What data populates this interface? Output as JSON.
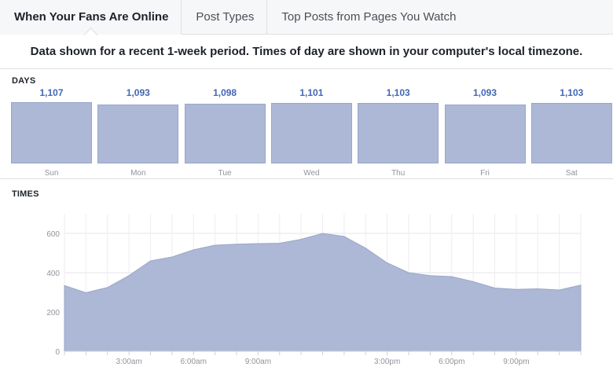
{
  "tabs": [
    {
      "label": "When Your Fans Are Online",
      "active": true
    },
    {
      "label": "Post Types",
      "active": false
    },
    {
      "label": "Top Posts from Pages You Watch",
      "active": false
    }
  ],
  "notice": "Data shown for a recent 1-week period. Times of day are shown in your computer's local timezone.",
  "days_section": {
    "title": "DAYS"
  },
  "times_section": {
    "title": "TIMES"
  },
  "colors": {
    "bar_fill": "#adb8d6",
    "value_text": "#4267b2",
    "area_fill": "#adb8d6"
  },
  "chart_data": [
    {
      "type": "bar",
      "title": "DAYS",
      "categories": [
        "Sun",
        "Mon",
        "Tue",
        "Wed",
        "Thu",
        "Fri",
        "Sat"
      ],
      "values": [
        1107,
        1093,
        1098,
        1101,
        1103,
        1093,
        1103
      ],
      "value_labels": [
        "1,107",
        "1,093",
        "1,098",
        "1,101",
        "1,103",
        "1,093",
        "1,103"
      ]
    },
    {
      "type": "area",
      "title": "TIMES",
      "x": [
        0,
        1,
        2,
        3,
        4,
        5,
        6,
        7,
        8,
        9,
        10,
        11,
        12,
        13,
        14,
        15,
        16,
        17,
        18,
        19,
        20,
        21,
        22,
        23
      ],
      "values": [
        335,
        298,
        325,
        385,
        460,
        480,
        517,
        540,
        545,
        548,
        550,
        570,
        600,
        585,
        525,
        450,
        400,
        385,
        380,
        355,
        322,
        315,
        318,
        312
      ],
      "end_value": 337,
      "x_tick_labels": [
        {
          "x": 3,
          "label": "3:00am"
        },
        {
          "x": 6,
          "label": "6:00am"
        },
        {
          "x": 9,
          "label": "9:00am"
        },
        {
          "x": 15,
          "label": "3:00pm"
        },
        {
          "x": 18,
          "label": "6:00pm"
        },
        {
          "x": 21,
          "label": "9:00pm"
        }
      ],
      "y_ticks": [
        0,
        200,
        400,
        600
      ],
      "ylim": [
        0,
        700
      ],
      "grid": true
    }
  ]
}
